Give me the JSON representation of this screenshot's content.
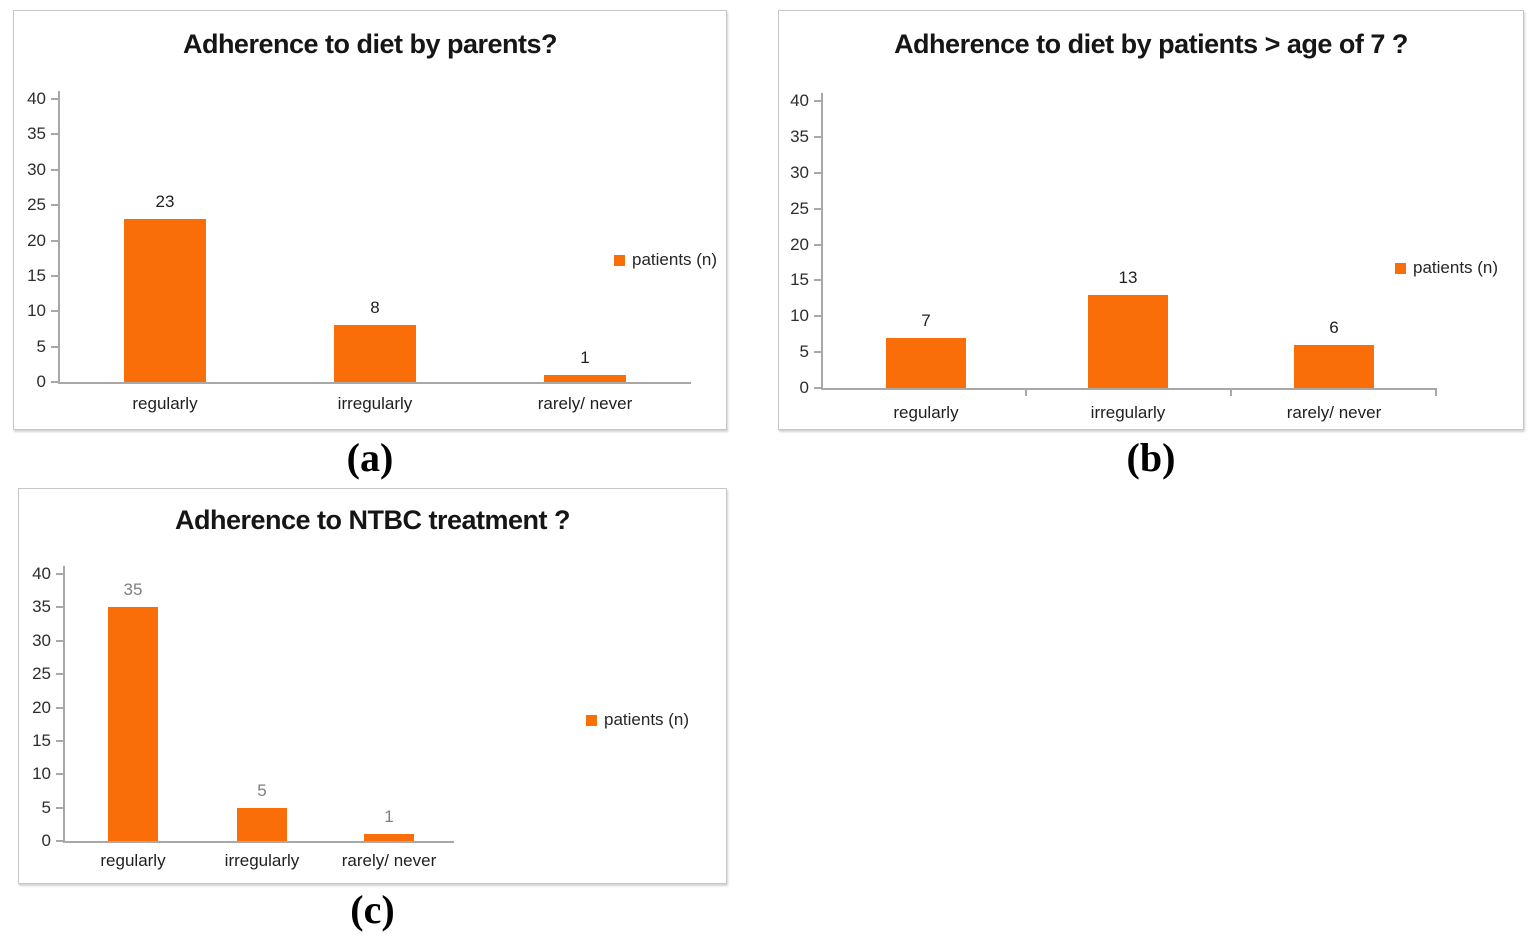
{
  "figure": {
    "captions": {
      "a": "(a)",
      "b": "(b)",
      "c": "(c)"
    }
  },
  "colors": {
    "bar_orange": "#FA6E0A",
    "axis_gray": "#A8A8A8",
    "data_label_dark": "#1F1F1F",
    "data_label_gray": "#7F7F7F"
  },
  "chart_data": [
    {
      "type": "bar",
      "title": "Adherence to diet by parents?",
      "categories": [
        "regularly",
        "irregularly",
        "rarely/ never"
      ],
      "values": [
        23,
        8,
        1
      ],
      "legend": [
        "patients (n)"
      ],
      "legend_position": "right",
      "ylim": [
        0,
        40
      ],
      "ytick_step": 5,
      "grid": false,
      "bar_color": "#FA6E0A",
      "data_label_color": "#1F1F1F"
    },
    {
      "type": "bar",
      "title": "Adherence to diet by patients > age of 7 ?",
      "categories": [
        "regularly",
        "irregularly",
        "rarely/ never"
      ],
      "values": [
        7,
        13,
        6
      ],
      "legend": [
        "patients (n)"
      ],
      "legend_position": "right",
      "ylim": [
        0,
        40
      ],
      "ytick_step": 5,
      "grid": false,
      "bar_color": "#FA6E0A",
      "data_label_color": "#1F1F1F"
    },
    {
      "type": "bar",
      "title": "Adherence to NTBC treatment ?",
      "categories": [
        "regularly",
        "irregularly",
        "rarely/ never"
      ],
      "values": [
        35,
        5,
        1
      ],
      "legend": [
        "patients (n)"
      ],
      "legend_position": "right",
      "ylim": [
        0,
        40
      ],
      "ytick_step": 5,
      "grid": false,
      "bar_color": "#FA6E0A",
      "data_label_color": "#7F7F7F"
    }
  ]
}
